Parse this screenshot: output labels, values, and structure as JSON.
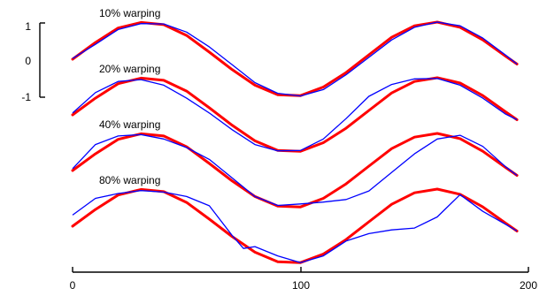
{
  "chart_data": {
    "type": "line",
    "title": "",
    "xlabel": "",
    "ylabel": "",
    "xlim": [
      0,
      200
    ],
    "x_ticks": [
      "0",
      "100",
      "200"
    ],
    "y_ticks": [
      "1",
      "0",
      "-1"
    ],
    "legend": "none",
    "grid": false,
    "colors": {
      "reference": "#ff0000",
      "warped": "#0000ff"
    },
    "panels": [
      {
        "label": "10% warping",
        "offset": 0,
        "reference": {
          "x": [
            0,
            10,
            20,
            30,
            40,
            50,
            60,
            70,
            80,
            90,
            100,
            110,
            120,
            130,
            140,
            150,
            160,
            170,
            180,
            190,
            195
          ],
          "y": [
            0,
            0.45,
            0.84,
            0.99,
            0.93,
            0.64,
            0.19,
            -0.28,
            -0.7,
            -0.96,
            -0.98,
            -0.75,
            -0.36,
            0.12,
            0.59,
            0.9,
            1.0,
            0.86,
            0.52,
            0.08,
            -0.13
          ]
        },
        "warped": {
          "x": [
            0,
            10,
            20,
            30,
            40,
            50,
            60,
            70,
            80,
            90,
            100,
            110,
            120,
            130,
            140,
            150,
            160,
            170,
            180,
            190,
            195
          ],
          "y": [
            0.02,
            0.4,
            0.8,
            0.96,
            0.95,
            0.73,
            0.33,
            -0.15,
            -0.63,
            -0.92,
            -0.99,
            -0.82,
            -0.42,
            0.05,
            0.52,
            0.86,
            1.0,
            0.9,
            0.57,
            0.11,
            -0.13
          ]
        }
      },
      {
        "label": "20% warping",
        "offset": -1.5,
        "reference": {
          "x": [
            0,
            10,
            20,
            30,
            40,
            50,
            60,
            70,
            80,
            90,
            100,
            110,
            120,
            130,
            140,
            150,
            160,
            170,
            180,
            190,
            195
          ],
          "y": [
            0,
            0.45,
            0.84,
            0.99,
            0.93,
            0.64,
            0.19,
            -0.28,
            -0.7,
            -0.96,
            -0.98,
            -0.75,
            -0.36,
            0.12,
            0.59,
            0.9,
            1.0,
            0.86,
            0.52,
            0.08,
            -0.13
          ]
        },
        "warped": {
          "x": [
            0,
            10,
            20,
            30,
            40,
            50,
            60,
            70,
            80,
            90,
            100,
            110,
            120,
            130,
            140,
            150,
            160,
            170,
            180,
            190,
            195
          ],
          "y": [
            0.05,
            0.6,
            0.9,
            0.95,
            0.8,
            0.45,
            0.05,
            -0.4,
            -0.8,
            -0.97,
            -0.96,
            -0.65,
            -0.1,
            0.5,
            0.82,
            0.97,
            0.98,
            0.8,
            0.45,
            0.02,
            -0.13
          ]
        }
      },
      {
        "label": "40% warping",
        "offset": -3,
        "reference": {
          "x": [
            0,
            10,
            20,
            30,
            40,
            50,
            60,
            70,
            80,
            90,
            100,
            110,
            120,
            130,
            140,
            150,
            160,
            170,
            180,
            190,
            195
          ],
          "y": [
            0,
            0.45,
            0.84,
            0.99,
            0.93,
            0.64,
            0.19,
            -0.28,
            -0.7,
            -0.96,
            -0.98,
            -0.75,
            -0.36,
            0.12,
            0.59,
            0.9,
            1.0,
            0.86,
            0.52,
            0.08,
            -0.13
          ]
        },
        "warped": {
          "x": [
            0,
            10,
            20,
            30,
            40,
            50,
            60,
            70,
            80,
            90,
            100,
            110,
            120,
            130,
            140,
            150,
            160,
            170,
            180,
            190,
            195
          ],
          "y": [
            0.05,
            0.7,
            0.93,
            0.97,
            0.85,
            0.62,
            0.3,
            -0.2,
            -0.7,
            -0.94,
            -0.9,
            -0.85,
            -0.78,
            -0.55,
            -0.05,
            0.45,
            0.85,
            0.95,
            0.65,
            0.1,
            -0.13
          ]
        }
      },
      {
        "label": "80% warping",
        "offset": -4.5,
        "reference": {
          "x": [
            0,
            10,
            20,
            30,
            40,
            50,
            60,
            70,
            80,
            90,
            100,
            110,
            120,
            130,
            140,
            150,
            160,
            170,
            180,
            190,
            195
          ],
          "y": [
            0,
            0.45,
            0.84,
            0.99,
            0.93,
            0.64,
            0.19,
            -0.28,
            -0.7,
            -0.96,
            -0.98,
            -0.75,
            -0.36,
            0.12,
            0.59,
            0.9,
            1.0,
            0.86,
            0.52,
            0.08,
            -0.13
          ]
        },
        "warped": {
          "x": [
            0,
            10,
            20,
            30,
            40,
            50,
            60,
            70,
            75,
            80,
            90,
            100,
            110,
            120,
            130,
            140,
            150,
            160,
            165,
            170,
            180,
            190,
            195
          ],
          "y": [
            0.3,
            0.75,
            0.88,
            0.96,
            0.92,
            0.8,
            0.55,
            -0.25,
            -0.6,
            -0.55,
            -0.8,
            -0.98,
            -0.8,
            -0.4,
            -0.2,
            -0.1,
            -0.05,
            0.25,
            0.55,
            0.85,
            0.4,
            0.05,
            -0.13
          ]
        }
      }
    ]
  }
}
